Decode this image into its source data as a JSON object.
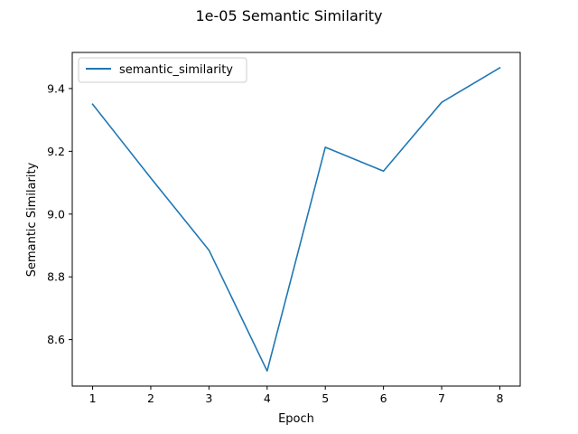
{
  "chart_data": {
    "type": "line",
    "title": "1e-05 Semantic Similarity",
    "xlabel": "Epoch",
    "ylabel": "Semantic Similarity",
    "x": [
      1,
      2,
      3,
      4,
      5,
      6,
      7,
      8
    ],
    "series": [
      {
        "name": "semantic_similarity",
        "color": "#1f77b4",
        "values": [
          9.35,
          9.115,
          8.885,
          8.5,
          9.213,
          9.137,
          9.356,
          9.466
        ]
      }
    ],
    "xlim": [
      0.65,
      8.35
    ],
    "ylim": [
      8.452,
      9.515
    ],
    "xticks": [
      "1",
      "2",
      "3",
      "4",
      "5",
      "6",
      "7",
      "8"
    ],
    "yticks": [
      "8.6",
      "8.8",
      "9.0",
      "9.2",
      "9.4"
    ],
    "grid": false,
    "legend": "upper-left"
  }
}
